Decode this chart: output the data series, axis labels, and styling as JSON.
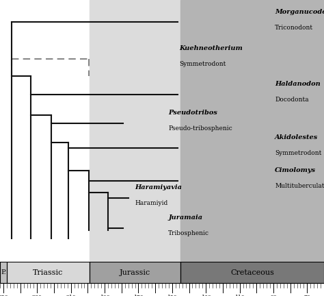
{
  "bg_color": "#ffffff",
  "light_gray": "#dcdcdc",
  "cret_gray": "#b4b4b4",
  "tree_color": "#111111",
  "dashed_color": "#888888",
  "time_min": 252,
  "time_max": 60,
  "periods": [
    {
      "name": "P.",
      "color": "#c0c0c0",
      "t0": 252,
      "t1": 248
    },
    {
      "name": "Triassic",
      "color": "#d8d8d8",
      "t0": 248,
      "t1": 199
    },
    {
      "name": "Jurassic",
      "color": "#a0a0a0",
      "t0": 199,
      "t1": 145
    },
    {
      "name": "Cretaceous",
      "color": "#787878",
      "t0": 145,
      "t1": 60
    }
  ]
}
